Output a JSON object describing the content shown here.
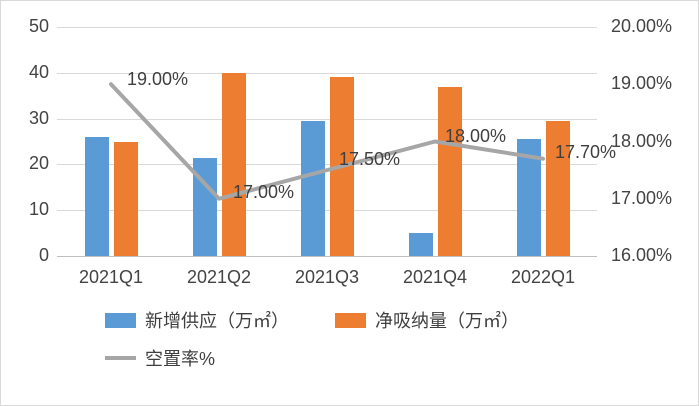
{
  "chart_data": {
    "type": "combo-bar-line",
    "title": "",
    "categories": [
      "2021Q1",
      "2021Q2",
      "2021Q3",
      "2021Q4",
      "2022Q1"
    ],
    "series": [
      {
        "name": "新增供应（万㎡）",
        "type": "bar",
        "axis": "left",
        "color": "#5B9BD5",
        "values": [
          26,
          21.5,
          29.5,
          5,
          25.5
        ]
      },
      {
        "name": "净吸纳量（万㎡）",
        "type": "bar",
        "axis": "left",
        "color": "#ED7D31",
        "values": [
          25,
          40,
          39,
          37,
          29.5
        ]
      },
      {
        "name": "空置率%",
        "type": "line",
        "axis": "right",
        "color": "#A6A6A6",
        "values": [
          19.0,
          17.0,
          17.5,
          18.0,
          17.7
        ],
        "labels": [
          "19.00%",
          "17.00%",
          "17.50%",
          "18.00%",
          "17.70%"
        ]
      }
    ],
    "left_axis": {
      "min": 0,
      "max": 50,
      "tick_values": [
        50,
        40,
        30,
        20,
        10,
        0
      ],
      "ticks": [
        "50",
        "40",
        "30",
        "20",
        "10",
        "0"
      ]
    },
    "right_axis": {
      "min": 16,
      "max": 20,
      "tick_values": [
        20,
        19,
        18,
        17,
        16
      ],
      "ticks": [
        "20.00%",
        "19.00%",
        "18.00%",
        "17.00%",
        "16.00%"
      ]
    },
    "grid": true,
    "grid_color": "#d9d9d9",
    "axis_line_color": "#bfbfbf",
    "axis_text_color": "#444444",
    "legend_position": "bottom"
  }
}
